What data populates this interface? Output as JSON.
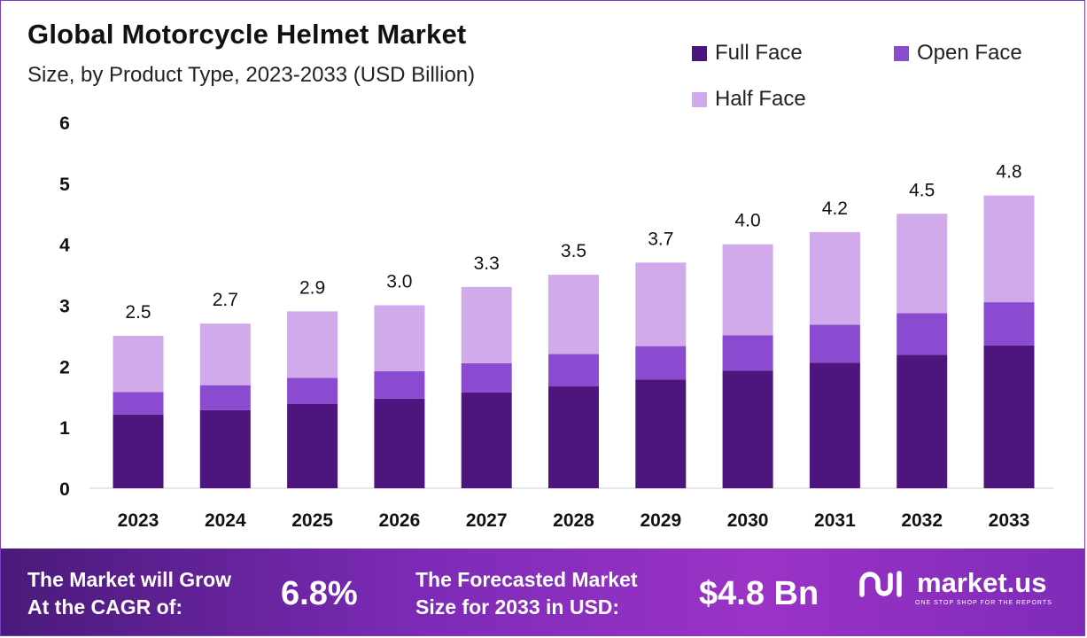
{
  "header": {
    "title": "Global Motorcycle Helmet Market",
    "subtitle": "Size, by Product Type, 2023-2033 (USD Billion)"
  },
  "legend": [
    {
      "label": "Full Face",
      "color": "#4e157e"
    },
    {
      "label": "Open Face",
      "color": "#8a4bd0"
    },
    {
      "label": "Half Face",
      "color": "#d1aaeb"
    }
  ],
  "chart_data": {
    "type": "bar",
    "stacked": true,
    "categories": [
      "2023",
      "2024",
      "2025",
      "2026",
      "2027",
      "2028",
      "2029",
      "2030",
      "2031",
      "2032",
      "2033"
    ],
    "series": [
      {
        "name": "Full Face",
        "color": "#4e157e",
        "values": [
          1.21,
          1.28,
          1.38,
          1.47,
          1.57,
          1.67,
          1.78,
          1.93,
          2.06,
          2.19,
          2.34
        ]
      },
      {
        "name": "Open Face",
        "color": "#8a4bd0",
        "values": [
          0.37,
          0.41,
          0.43,
          0.45,
          0.48,
          0.53,
          0.55,
          0.58,
          0.62,
          0.68,
          0.71
        ]
      },
      {
        "name": "Half Face",
        "color": "#d1aaeb",
        "values": [
          0.92,
          1.01,
          1.09,
          1.08,
          1.25,
          1.3,
          1.37,
          1.49,
          1.52,
          1.63,
          1.75
        ]
      }
    ],
    "totals": [
      "2.5",
      "2.7",
      "2.9",
      "3.0",
      "3.3",
      "3.5",
      "3.7",
      "4.0",
      "4.2",
      "4.5",
      "4.8"
    ],
    "yticks": [
      "0",
      "1",
      "2",
      "3",
      "4",
      "5",
      "6"
    ],
    "ylim": [
      0,
      6
    ],
    "grid": false,
    "legend_position": "top-right"
  },
  "footer": {
    "cagr_label_line1": "The Market will Grow",
    "cagr_label_line2": "At the CAGR of:",
    "cagr_value": "6.8%",
    "forecast_label_line1": "The Forecasted Market",
    "forecast_label_line2": "Size for 2033 in USD:",
    "forecast_value": "$4.8 Bn",
    "brand_name": "market.us",
    "brand_tagline": "ONE STOP SHOP FOR THE REPORTS"
  }
}
